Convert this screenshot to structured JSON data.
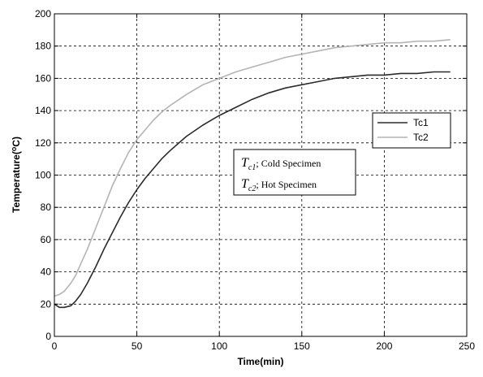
{
  "chart_data": {
    "type": "line",
    "xlabel": "Time(min)",
    "ylabel_parts": {
      "prefix": "Temperature(",
      "sup": "o",
      "suffix": "C)"
    },
    "xlim": [
      0,
      250
    ],
    "ylim": [
      0,
      200
    ],
    "x_ticks": [
      "0",
      "50",
      "100",
      "150",
      "200",
      "250"
    ],
    "y_ticks": [
      "0",
      "20",
      "40",
      "60",
      "80",
      "100",
      "120",
      "140",
      "160",
      "180",
      "200"
    ],
    "grid": true,
    "legend_position": "right-middle",
    "series": [
      {
        "name": "Tc1",
        "color": "#2b2b2b",
        "x": [
          0,
          3,
          6,
          10,
          13,
          16,
          20,
          25,
          30,
          35,
          40,
          45,
          50,
          55,
          60,
          65,
          70,
          80,
          90,
          100,
          110,
          120,
          130,
          140,
          150,
          160,
          170,
          180,
          190,
          200,
          210,
          220,
          230,
          240
        ],
        "y": [
          20,
          18,
          18,
          19,
          22,
          26,
          33,
          43,
          54,
          64,
          74,
          83,
          91,
          98,
          104,
          110,
          115,
          124,
          131,
          137,
          142,
          147,
          151,
          154,
          156,
          158,
          160,
          161,
          162,
          162,
          163,
          163,
          164,
          164
        ]
      },
      {
        "name": "Tc2",
        "color": "#b4b4b4",
        "x": [
          0,
          3,
          6,
          10,
          13,
          16,
          20,
          25,
          30,
          35,
          40,
          45,
          50,
          55,
          60,
          65,
          70,
          80,
          90,
          100,
          110,
          120,
          130,
          140,
          150,
          160,
          170,
          180,
          190,
          200,
          210,
          220,
          230,
          240
        ],
        "y": [
          25,
          26,
          28,
          33,
          38,
          45,
          54,
          67,
          80,
          93,
          104,
          114,
          122,
          128,
          134,
          139,
          143,
          150,
          156,
          160,
          164,
          167,
          170,
          173,
          175,
          177,
          179,
          180,
          181,
          182,
          182,
          183,
          183,
          184
        ]
      }
    ],
    "annotation": {
      "lines": [
        {
          "symbol": "T",
          "sub": "c1",
          "text": "; Cold Specimen"
        },
        {
          "symbol": "T",
          "sub": "c2",
          "text": "; Hot Specimen"
        }
      ]
    }
  }
}
